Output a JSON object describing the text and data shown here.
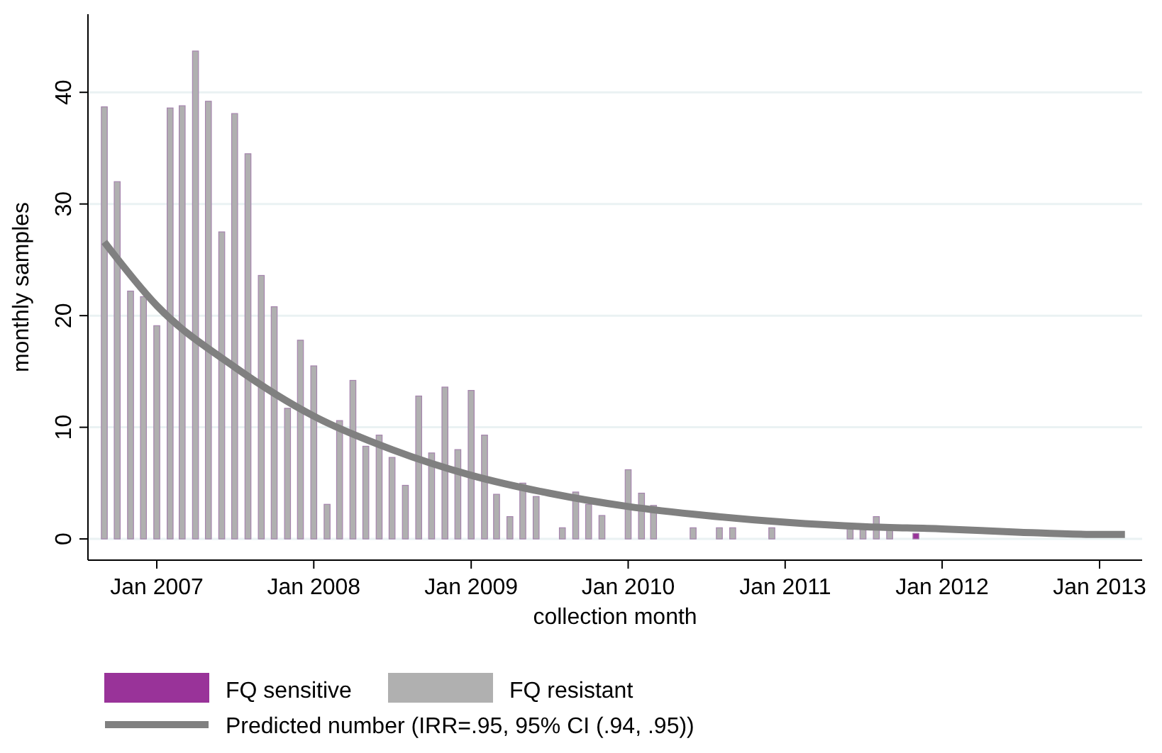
{
  "chart_data": {
    "type": "bar",
    "xlabel": "collection month",
    "ylabel": "monthly samples",
    "xlim": [
      "2006-07-25",
      "2013-04-10"
    ],
    "ylim": [
      -1.9,
      47
    ],
    "xticks": [
      {
        "value": "2007-01-01",
        "label": "Jan 2007"
      },
      {
        "value": "2008-01-01",
        "label": "Jan 2008"
      },
      {
        "value": "2009-01-01",
        "label": "Jan 2009"
      },
      {
        "value": "2010-01-01",
        "label": "Jan 2010"
      },
      {
        "value": "2011-01-01",
        "label": "Jan 2011"
      },
      {
        "value": "2012-01-01",
        "label": "Jan 2012"
      },
      {
        "value": "2013-01-01",
        "label": "Jan 2013"
      }
    ],
    "yticks": [
      0,
      10,
      20,
      30,
      40
    ],
    "grid": "y",
    "legend": "bottom",
    "series": [
      {
        "name": "FQ sensitive",
        "color": "#993399",
        "x": [
          "2011-11"
        ],
        "values": [
          0.5
        ]
      },
      {
        "name": "FQ resistant",
        "color": "#b0b0b0",
        "x": [
          "2006-09",
          "2006-10",
          "2006-11",
          "2006-12",
          "2007-01",
          "2007-02",
          "2007-03",
          "2007-04",
          "2007-05",
          "2007-06",
          "2007-07",
          "2007-08",
          "2007-09",
          "2007-10",
          "2007-11",
          "2007-12",
          "2008-01",
          "2008-02",
          "2008-03",
          "2008-04",
          "2008-05",
          "2008-06",
          "2008-07",
          "2008-08",
          "2008-09",
          "2008-10",
          "2008-11",
          "2008-12",
          "2009-01",
          "2009-02",
          "2009-03",
          "2009-04",
          "2009-05",
          "2009-06",
          "2009-08",
          "2009-09",
          "2009-10",
          "2009-11",
          "2010-01",
          "2010-02",
          "2010-03",
          "2010-06",
          "2010-08",
          "2010-09",
          "2010-12",
          "2011-06",
          "2011-07",
          "2011-08",
          "2011-09"
        ],
        "values": [
          38.7,
          32.0,
          22.2,
          21.7,
          19.1,
          38.6,
          38.8,
          43.7,
          39.2,
          27.5,
          38.1,
          34.5,
          23.6,
          20.8,
          11.7,
          17.8,
          15.5,
          3.1,
          10.6,
          14.2,
          8.3,
          9.3,
          7.3,
          4.8,
          12.8,
          7.7,
          13.6,
          8.0,
          13.3,
          9.3,
          4.0,
          2.0,
          5.0,
          3.8,
          1.0,
          4.2,
          3.1,
          2.1,
          6.2,
          4.1,
          3.0,
          1.0,
          1.0,
          1.0,
          1.0,
          1.0,
          1.0,
          2.0,
          1.0
        ]
      },
      {
        "name": "Predicted number (IRR=.95, 95% CI (.94, .95))",
        "type": "line",
        "color": "#808080",
        "x": [
          "2006-09",
          "2007-01",
          "2007-07",
          "2008-01",
          "2008-07",
          "2009-01",
          "2009-07",
          "2010-01",
          "2010-07",
          "2011-01",
          "2011-07",
          "2012-01",
          "2012-07",
          "2013-01",
          "2013-03"
        ],
        "values": [
          26.6,
          20.9,
          15.4,
          11.0,
          8.0,
          5.7,
          4.1,
          2.9,
          2.1,
          1.5,
          1.1,
          0.9,
          0.6,
          0.4,
          0.4
        ]
      }
    ]
  }
}
